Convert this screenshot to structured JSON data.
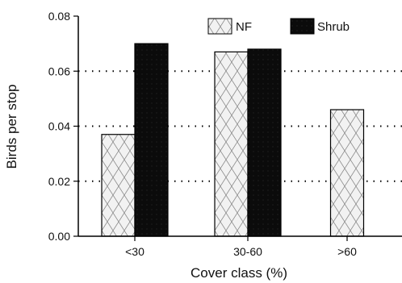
{
  "chart_data": {
    "type": "bar",
    "categories": [
      "<30",
      "30-60",
      ">60"
    ],
    "series": [
      {
        "name": "NF",
        "values": [
          0.037,
          0.067,
          0.046
        ]
      },
      {
        "name": "Shrub",
        "values": [
          0.07,
          0.068,
          null
        ]
      }
    ],
    "xlabel": "Cover class (%)",
    "ylabel": "Birds per stop",
    "ylim": [
      0,
      0.08
    ],
    "yticks": [
      "0.00",
      "0.02",
      "0.04",
      "0.06",
      "0.08"
    ],
    "grid": "horizontal dotted",
    "legend_position": "top-right",
    "colors": {
      "nf_fill": "#f2f2f2",
      "nf_pattern": "#8a8a8a",
      "shrub_fill": "#0b0b0b",
      "axis": "#000000",
      "grid": "#000000"
    }
  }
}
